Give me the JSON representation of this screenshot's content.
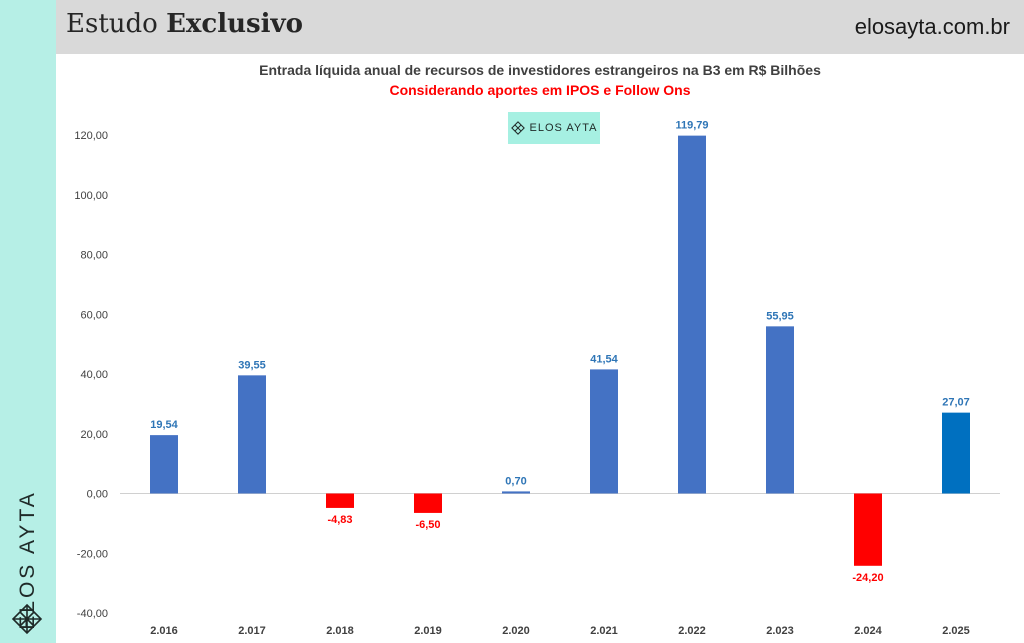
{
  "header": {
    "title_regular": "Estudo",
    "title_bold": "Exclusivo",
    "site": "elosayta.com.br"
  },
  "sidebar": {
    "brand": "ELOS AYTA",
    "icon": "diamond-lattice-icon"
  },
  "watermark": {
    "text": "ELOS AYTA",
    "icon": "diamond-lattice-icon"
  },
  "colors": {
    "positive": "#4472c4",
    "negative": "#ff0000",
    "highlight": "#0070c0",
    "positive_label": "#2e75b6",
    "negative_label": "#ff0000",
    "sidebar": "#b6efe6",
    "header": "#d9d9d9"
  },
  "chart_data": {
    "type": "bar",
    "title": "Entrada líquida anual de recursos de investidores estrangeiros na B3 em R$ Bilhões",
    "subtitle": "Considerando aportes em IPOS e Follow Ons",
    "categories": [
      "2.016",
      "2.017",
      "2.018",
      "2.019",
      "2.020",
      "2.021",
      "2.022",
      "2.023",
      "2.024",
      "2.025"
    ],
    "values": [
      19.54,
      39.55,
      -4.83,
      -6.5,
      0.7,
      41.54,
      119.79,
      55.95,
      -24.2,
      27.07
    ],
    "value_labels": [
      "19,54",
      "39,55",
      "-4,83",
      "-6,50",
      "0,70",
      "41,54",
      "119,79",
      "55,95",
      "-24,20",
      "27,07"
    ],
    "highlight_category": "2.025",
    "ylim": [
      -40,
      120
    ],
    "yticks": [
      -40,
      -20,
      0,
      20,
      40,
      60,
      80,
      100,
      120
    ],
    "ytick_labels": [
      "-40,00",
      "-20,00",
      "0,00",
      "20,00",
      "40,00",
      "60,00",
      "80,00",
      "100,00",
      "120,00"
    ],
    "grid": false,
    "legend": "none",
    "xlabel": "",
    "ylabel": ""
  }
}
